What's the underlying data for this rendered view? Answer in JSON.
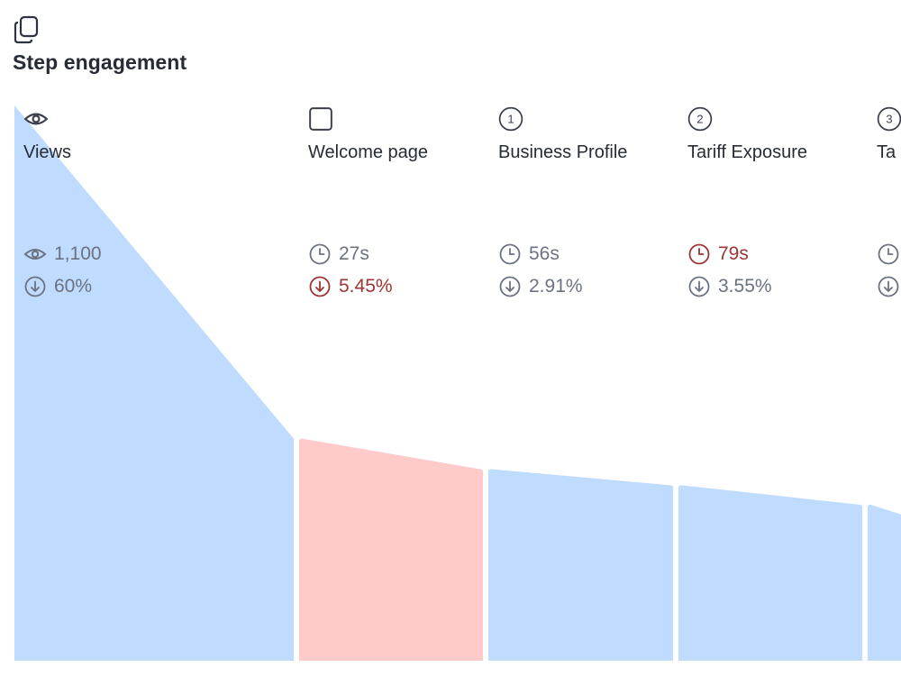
{
  "header": {
    "title": "Step engagement",
    "icon": "copy-icon"
  },
  "colors": {
    "normal_fill": "#bfdbfe",
    "highlight_fill": "#fecaca",
    "normal_text": "#6b7280",
    "highlight_text": "#9d3434"
  },
  "chart_data": {
    "type": "area",
    "title": "Step engagement",
    "steps": [
      {
        "label": "Views",
        "icon": "eye-icon",
        "primary": "1,100",
        "primary_kind": "views",
        "dropoff": "60%",
        "highlight": false,
        "time_highlight": false,
        "drop_highlight": false,
        "level_start": 1.0,
        "level_end": 0.4
      },
      {
        "label": "Welcome page",
        "icon": "square-icon",
        "primary": "27s",
        "primary_kind": "time",
        "dropoff": "5.45%",
        "highlight": true,
        "time_highlight": false,
        "drop_highlight": true,
        "level_start": 0.4,
        "level_end": 0.345
      },
      {
        "label": "Business Profile",
        "icon": "step-1-icon",
        "step_number": "1",
        "primary": "56s",
        "primary_kind": "time",
        "dropoff": "2.91%",
        "highlight": false,
        "time_highlight": false,
        "drop_highlight": false,
        "level_start": 0.345,
        "level_end": 0.316
      },
      {
        "label": "Tariff Exposure",
        "icon": "step-2-icon",
        "step_number": "2",
        "primary": "79s",
        "primary_kind": "time",
        "dropoff": "3.55%",
        "highlight": false,
        "time_highlight": true,
        "drop_highlight": false,
        "level_start": 0.316,
        "level_end": 0.281
      },
      {
        "label": "Ta",
        "icon": "step-3-icon",
        "step_number": "3",
        "primary": "",
        "primary_kind": "time",
        "dropoff": "",
        "highlight": false,
        "time_highlight": false,
        "drop_highlight": false,
        "level_start": 0.281,
        "level_end": 0.26
      }
    ]
  }
}
